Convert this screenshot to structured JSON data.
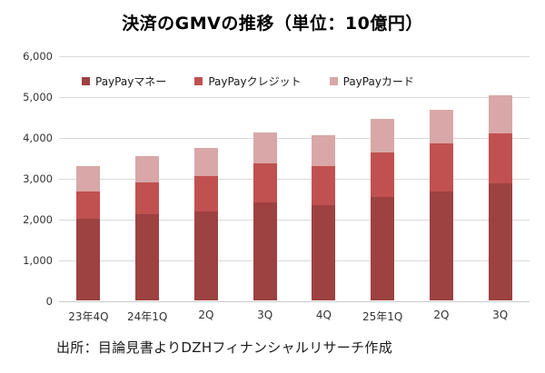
{
  "title": "決済のGMVの推移（単位：10億円）",
  "source": "出所：目論見書よりDZHフィナンシャルリサーチ作成",
  "palette": {
    "money": "#9E4141",
    "credit": "#C15150",
    "card": "#D9A7A7",
    "gridline": "#DADADA",
    "axis_text": "#333333"
  },
  "chart_data": {
    "type": "bar",
    "stacked": true,
    "title": "決済のGMVの推移（単位：10億円）",
    "xlabel": "",
    "ylabel": "",
    "unit": "10億円",
    "categories": [
      "23年4Q",
      "24年1Q",
      "2Q",
      "3Q",
      "4Q",
      "25年1Q",
      "2Q",
      "3Q"
    ],
    "series": [
      {
        "name": "PayPayマネー",
        "color": "#9E4141",
        "values": [
          2000,
          2110,
          2170,
          2410,
          2330,
          2540,
          2670,
          2860
        ]
      },
      {
        "name": "PayPayクレジット",
        "color": "#C15150",
        "values": [
          660,
          780,
          880,
          950,
          960,
          1090,
          1170,
          1240
        ]
      },
      {
        "name": "PayPayカード",
        "color": "#D9A7A7",
        "values": [
          630,
          650,
          680,
          760,
          760,
          810,
          830,
          930
        ]
      }
    ],
    "totals": [
      3290,
      3540,
      3730,
      4120,
      4050,
      4440,
      4670,
      5030
    ],
    "ylim": [
      0,
      6000
    ],
    "ytick_interval": 1000,
    "ytick_labels": [
      "0",
      "1,000",
      "2,000",
      "3,000",
      "4,000",
      "5,000",
      "6,000"
    ],
    "grid": true,
    "legend_position": "top-inside"
  }
}
